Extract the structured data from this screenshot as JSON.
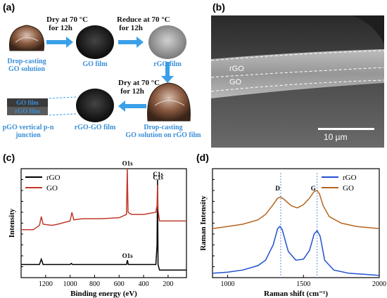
{
  "panel_a": {
    "label": "(a)",
    "steps": {
      "dry1_line1": "Dry at 70 °C",
      "dry1_line2": "for 12h",
      "reduce_line1": "Reduce at 70 °C",
      "reduce_line2": "for 12h",
      "dry2_line1": "Dry at 70 °C",
      "dry2_line2": "for 12h"
    },
    "captions": {
      "drop1_line1": "Drop-casting",
      "drop1_line2": "GO solution",
      "go_film": "GO film",
      "rgo_film": "rGO film",
      "drop2_line1": "Drop-casting",
      "drop2_line2": "GO solution on rGO film",
      "rgo_go_film": "rGO-GO film",
      "pgo_line1": "pGO vertical p-n",
      "pgo_line2": "junction",
      "layer_top": "GO film",
      "layer_bottom": "rGO film"
    },
    "colors": {
      "arrow": "#3aa0e8",
      "caption": "#3a8fd8"
    }
  },
  "panel_b": {
    "label": "(b)",
    "layer_labels": [
      "rGO",
      "GO"
    ],
    "scale_bar": "10 µm"
  },
  "panel_c": {
    "label": "(c)",
    "peak_labels": [
      "O1s",
      "C1s",
      "O1s",
      "C1s"
    ]
  },
  "panel_d": {
    "label": "(d)",
    "peak_labels": [
      "D",
      "G"
    ]
  },
  "chart_data": [
    {
      "type": "line",
      "panel": "c",
      "xlabel": "Binding energy (eV)",
      "ylabel": "Intensity",
      "xlim": [
        1400,
        50
      ],
      "xticks": [
        1200,
        1000,
        800,
        600,
        400,
        200
      ],
      "legend_position": "top-left",
      "series": [
        {
          "name": "rGO",
          "color": "#000000",
          "x": [
            1400,
            1250,
            1235,
            1220,
            1100,
            1000,
            990,
            980,
            900,
            700,
            540,
            532,
            525,
            400,
            300,
            290,
            286,
            282,
            270,
            150,
            50
          ],
          "y": [
            0.12,
            0.12,
            0.17,
            0.12,
            0.12,
            0.12,
            0.13,
            0.12,
            0.12,
            0.12,
            0.12,
            0.16,
            0.12,
            0.12,
            0.12,
            0.3,
            0.9,
            0.12,
            0.07,
            0.07,
            0.07
          ]
        },
        {
          "name": "GO",
          "color": "#c0392b",
          "x": [
            1400,
            1300,
            1250,
            1235,
            1220,
            1150,
            1100,
            1000,
            985,
            970,
            900,
            750,
            600,
            540,
            533,
            527,
            500,
            400,
            300,
            290,
            286,
            282,
            270,
            150,
            50
          ],
          "y": [
            0.44,
            0.44,
            0.48,
            0.56,
            0.49,
            0.48,
            0.49,
            0.52,
            0.6,
            0.53,
            0.54,
            0.54,
            0.55,
            0.58,
            1.0,
            0.6,
            0.58,
            0.58,
            0.6,
            0.66,
            0.85,
            0.62,
            0.52,
            0.52,
            0.52
          ]
        }
      ]
    },
    {
      "type": "line",
      "panel": "d",
      "xlabel": "Raman shift (cm⁻¹)",
      "ylabel": "Raman Intensity",
      "xlim": [
        900,
        2000
      ],
      "xticks": [
        1000,
        1500,
        2000
      ],
      "legend_position": "top-right",
      "series": [
        {
          "name": "rGO",
          "color": "#1f50d0",
          "x": [
            900,
            1000,
            1100,
            1200,
            1250,
            1300,
            1330,
            1345,
            1360,
            1400,
            1450,
            1500,
            1540,
            1570,
            1590,
            1610,
            1640,
            1700,
            1800,
            1900,
            2000
          ],
          "y": [
            0.04,
            0.05,
            0.07,
            0.11,
            0.16,
            0.3,
            0.45,
            0.47,
            0.44,
            0.24,
            0.16,
            0.17,
            0.25,
            0.4,
            0.43,
            0.38,
            0.16,
            0.07,
            0.04,
            0.03,
            0.02
          ]
        },
        {
          "name": "GO",
          "color": "#b5651d",
          "x": [
            900,
            1000,
            1100,
            1200,
            1250,
            1300,
            1330,
            1350,
            1370,
            1420,
            1460,
            1500,
            1540,
            1570,
            1590,
            1605,
            1630,
            1670,
            1750,
            1850,
            2000
          ],
          "y": [
            0.45,
            0.47,
            0.49,
            0.53,
            0.58,
            0.67,
            0.73,
            0.74,
            0.72,
            0.66,
            0.64,
            0.67,
            0.73,
            0.79,
            0.8,
            0.77,
            0.66,
            0.56,
            0.5,
            0.47,
            0.45
          ]
        }
      ]
    }
  ]
}
